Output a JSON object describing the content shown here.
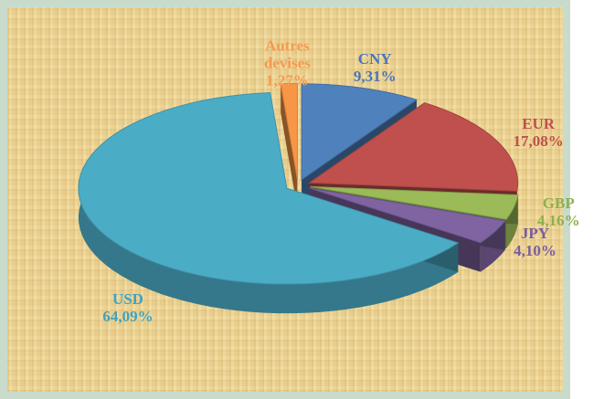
{
  "chart_data": {
    "type": "pie3d",
    "categories": [
      "CNY",
      "EUR",
      "GBP",
      "JPY",
      "USD",
      "Autres devises"
    ],
    "values": [
      9.31,
      17.08,
      4.16,
      4.1,
      64.09,
      1.27
    ],
    "value_labels": [
      "9,31%",
      "17,08%",
      "4,16%",
      "4,10%",
      "64,09%",
      "1,27%"
    ],
    "colors": [
      "#4f81bd",
      "#c0504d",
      "#9bbb59",
      "#8064a2",
      "#4bacc6",
      "#f79646"
    ],
    "label_colors": [
      "#4a76b8",
      "#c0504d",
      "#8fb04c",
      "#7a5c9e",
      "#3fa3c0",
      "#f59a52"
    ]
  }
}
